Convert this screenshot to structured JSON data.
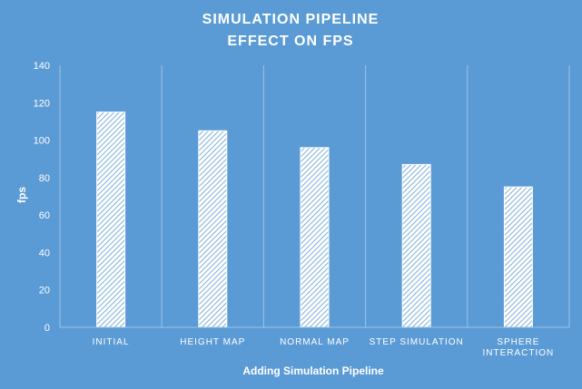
{
  "chart_data": {
    "type": "bar",
    "title_lines": [
      "SIMULATION PIPELINE",
      "EFFECT ON FPS"
    ],
    "xlabel": "Adding Simulation Pipeline",
    "ylabel": "fps",
    "categories": [
      [
        "INITIAL"
      ],
      [
        "HEIGHT MAP"
      ],
      [
        "NORMAL MAP"
      ],
      [
        "STEP SIMULATION"
      ],
      [
        "SPHERE",
        "INTERACTION"
      ]
    ],
    "values": [
      115,
      105,
      96,
      87,
      75
    ],
    "ylim": [
      0,
      140
    ],
    "yticks": [
      0,
      20,
      40,
      60,
      80,
      100,
      120,
      140
    ],
    "grid": "vertical",
    "legend": "none",
    "colors": {
      "background": "#5b9bd5",
      "bar_fill": "#ffffff",
      "bar_hatch": "#5b9bd5",
      "axis": "#9dc3e6",
      "text": "#ffffff"
    }
  }
}
